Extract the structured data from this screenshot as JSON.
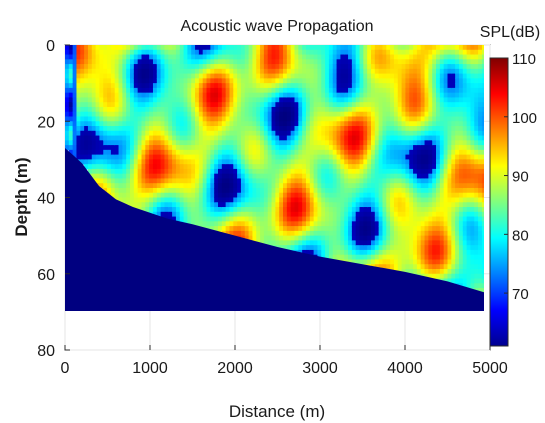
{
  "chart_data": {
    "type": "heatmap",
    "title": "Acoustic wave Propagation",
    "xlabel": "Distance (m)",
    "ylabel": "Depth (m)",
    "xlim": [
      0,
      5000
    ],
    "ylim": [
      0,
      80
    ],
    "y_reversed": true,
    "x_ticks": [
      "0",
      "1000",
      "2000",
      "3000",
      "4000",
      "5000"
    ],
    "y_ticks": [
      "0",
      "20",
      "40",
      "60",
      "80"
    ],
    "grid": true,
    "colorbar": {
      "label": "SPL(dB)",
      "range": [
        61,
        110
      ],
      "ticks": [
        "70",
        "80",
        "90",
        "100",
        "110"
      ],
      "colormap": "jet"
    },
    "field_extent": {
      "x": [
        0,
        4950
      ],
      "depth": [
        0,
        70
      ]
    },
    "seabed_depth_profile": {
      "distance": [
        0,
        100,
        200,
        400,
        600,
        800,
        1000,
        1200,
        1500,
        2000,
        2500,
        3000,
        3500,
        4000,
        4500,
        4950
      ],
      "depth": [
        27,
        29,
        31,
        37,
        40.5,
        42.5,
        44,
        45.5,
        47,
        50,
        53,
        55.5,
        57.5,
        59.5,
        62,
        65
      ]
    },
    "seabed_level_db": 61,
    "typical_water_level_db": 86
  }
}
